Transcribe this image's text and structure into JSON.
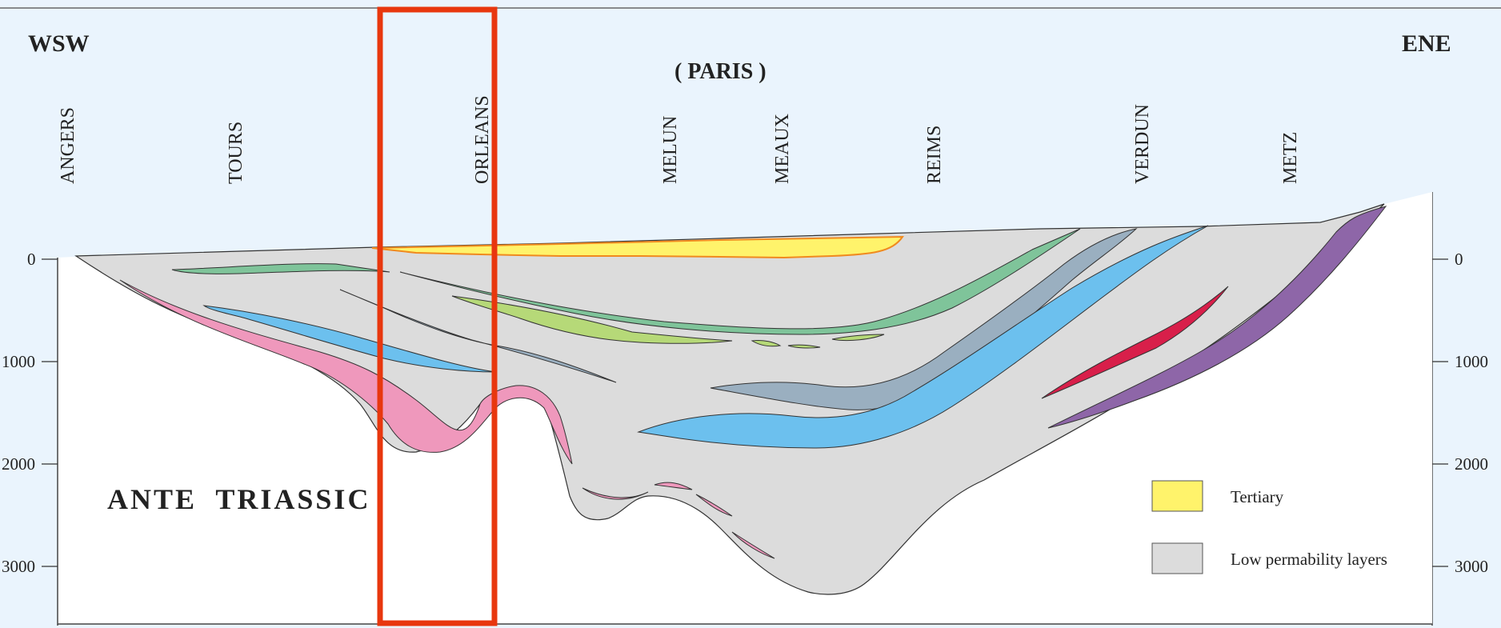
{
  "orientation": {
    "west": "WSW",
    "east": "ENE"
  },
  "paris_label": "( PARIS )",
  "cities": [
    "ANGERS",
    "TOURS",
    "ORLEANS",
    "MELUN",
    "MEAUX",
    "REIMS",
    "VERDUN",
    "METZ"
  ],
  "depth_ticks_left": [
    "0",
    "1000",
    "2000",
    "3000"
  ],
  "depth_ticks_right": [
    "0",
    "1000",
    "2000",
    "3000"
  ],
  "basement_label": "ANTE  TRIASSIC",
  "legend": [
    {
      "label": "Tertiary",
      "color": "#fff36b"
    },
    {
      "label": "Low permability layers",
      "color": "#dcdcdc"
    }
  ],
  "colors": {
    "sky": "#eaf4fd",
    "basin": "#dcdcdc",
    "tertiary": "#fff36b",
    "pink": "#ef98bc",
    "green": "#7fc49a",
    "lime": "#b6d978",
    "slate": "#9aafc0",
    "blue": "#6cc0ee",
    "red": "#d81f4a",
    "purple": "#8e66a8",
    "highlight": "#e8370e"
  }
}
